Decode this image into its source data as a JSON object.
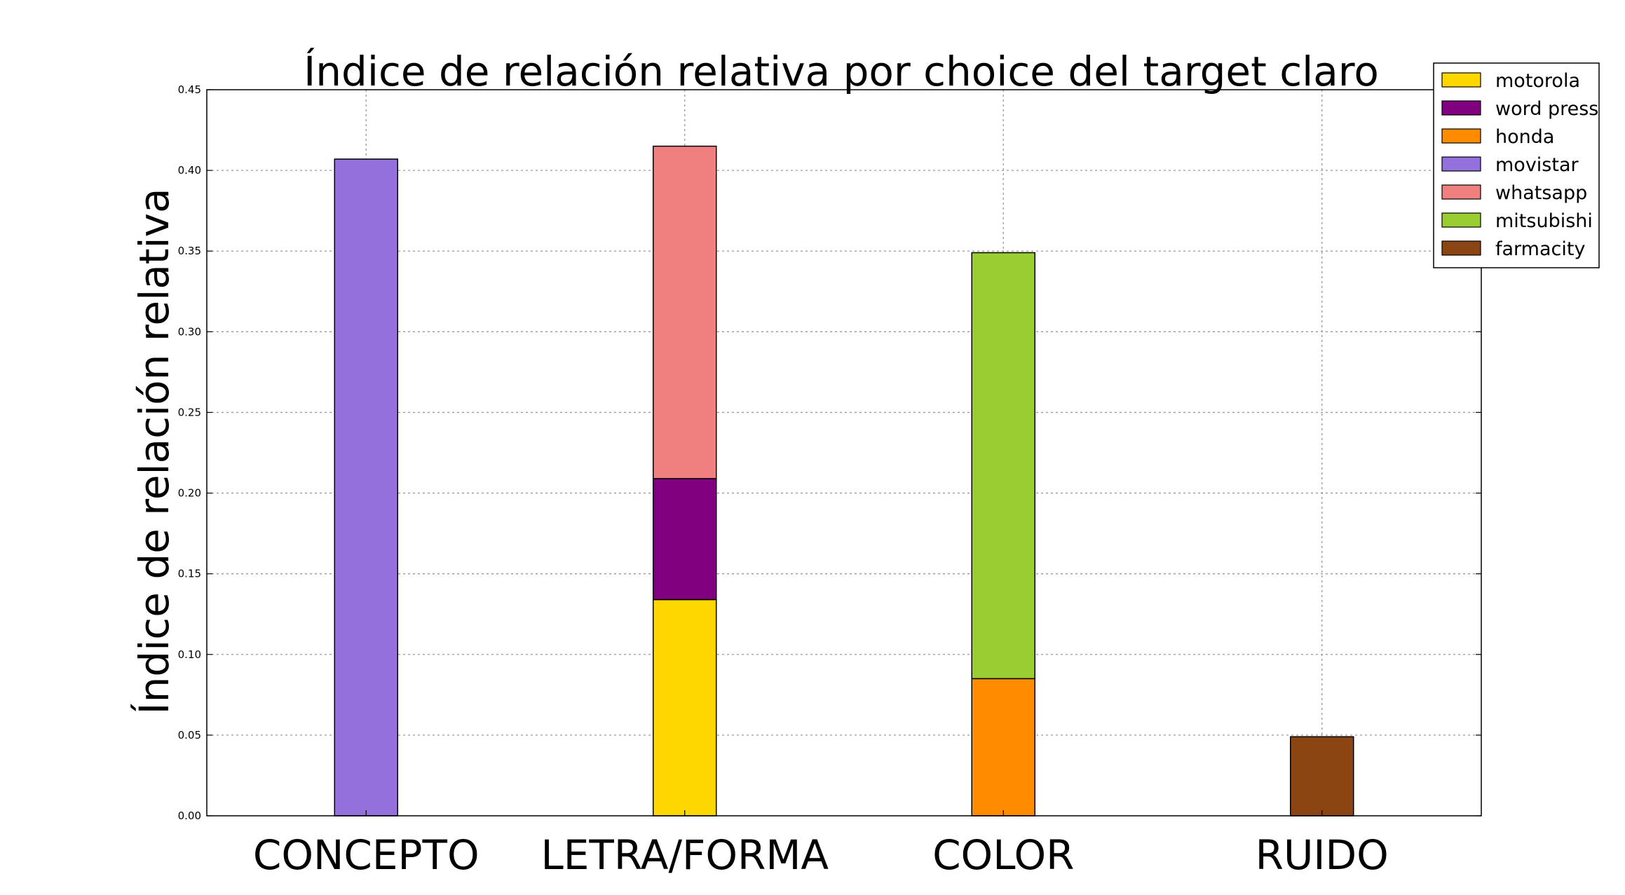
{
  "chart_data": {
    "type": "bar",
    "stacked": true,
    "title": "Índice de relación relativa por choice del target claro",
    "ylabel": "Índice de relación relativa",
    "xlabel": "",
    "categories": [
      "CONCEPTO",
      "LETRA/FORMA",
      "COLOR",
      "RUIDO"
    ],
    "ylim": [
      0,
      0.45
    ],
    "yticks": [
      "0.00",
      "0.05",
      "0.10",
      "0.15",
      "0.20",
      "0.25",
      "0.30",
      "0.35",
      "0.40",
      "0.45"
    ],
    "grid": true,
    "legend_position": "top-right",
    "series": [
      {
        "name": "motorola",
        "color": "#FFD700",
        "values": [
          0,
          0.134,
          0,
          0
        ]
      },
      {
        "name": "word press",
        "color": "#800080",
        "values": [
          0,
          0.075,
          0,
          0
        ]
      },
      {
        "name": "honda",
        "color": "#FF8C00",
        "values": [
          0,
          0,
          0.085,
          0
        ]
      },
      {
        "name": "movistar",
        "color": "#9370DB",
        "values": [
          0.407,
          0,
          0,
          0
        ]
      },
      {
        "name": "whatsapp",
        "color": "#F08080",
        "values": [
          0,
          0.206,
          0,
          0
        ]
      },
      {
        "name": "mitsubishi",
        "color": "#9ACD32",
        "values": [
          0,
          0,
          0.264,
          0
        ]
      },
      {
        "name": "farmacity",
        "color": "#8B4513",
        "values": [
          0,
          0,
          0,
          0.049
        ]
      }
    ]
  }
}
